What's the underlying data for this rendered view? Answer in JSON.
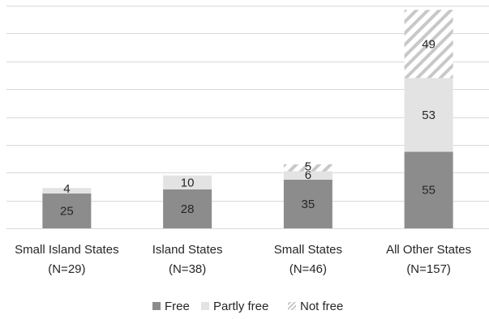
{
  "chart_data": {
    "type": "bar",
    "stacked": true,
    "categories": [
      [
        "Small Island States",
        "(N=29)"
      ],
      [
        "Island States",
        "(N=38)"
      ],
      [
        "Small States",
        "(N=46)"
      ],
      [
        "All Other States",
        "(N=157)"
      ]
    ],
    "series": [
      {
        "name": "Free",
        "values": [
          25,
          28,
          35,
          55
        ],
        "color": "#8c8c8c",
        "pattern": "solid"
      },
      {
        "name": "Partly free",
        "values": [
          4,
          10,
          6,
          53
        ],
        "color": "#e3e3e3",
        "pattern": "solid"
      },
      {
        "name": "Not free",
        "values": [
          0,
          0,
          5,
          49
        ],
        "color": "#c8c8c8",
        "pattern": "diagonal-hatch"
      }
    ],
    "ylim": [
      0,
      160
    ],
    "grid": true,
    "y_axis_labels": false,
    "legend_position": "bottom"
  }
}
